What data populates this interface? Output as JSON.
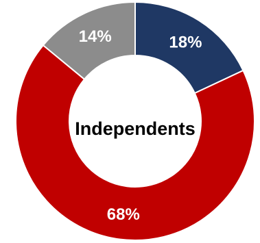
{
  "chart_data": {
    "type": "pie",
    "variant": "donut",
    "center_label": "Independents",
    "slices": [
      {
        "label": "18%",
        "value": 18,
        "color": "#1f3864"
      },
      {
        "label": "68%",
        "value": 68,
        "color": "#c00000"
      },
      {
        "label": "14%",
        "value": 14,
        "color": "#8c8c8c"
      }
    ],
    "start_angle_deg": 0,
    "direction": "clockwise"
  }
}
